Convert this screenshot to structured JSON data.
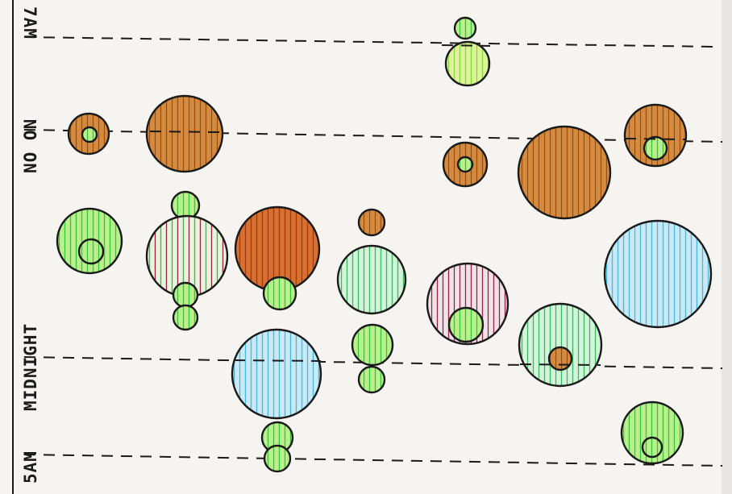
{
  "labels": {
    "top": "7AM",
    "noon": "NO ON",
    "midnight": "MIDNIGHT",
    "bottom": "5AM"
  },
  "colors": {
    "paper": "#f5f4f1",
    "ink": "#1a1a1a",
    "green": "#8fe36a",
    "light_green": "#c8f08a",
    "mint": "#c6f0cf",
    "brown": "#c77b33",
    "orange_red": "#d9562a",
    "sky": "#bfe3f2",
    "maroon": "#8a1f3a"
  }
}
